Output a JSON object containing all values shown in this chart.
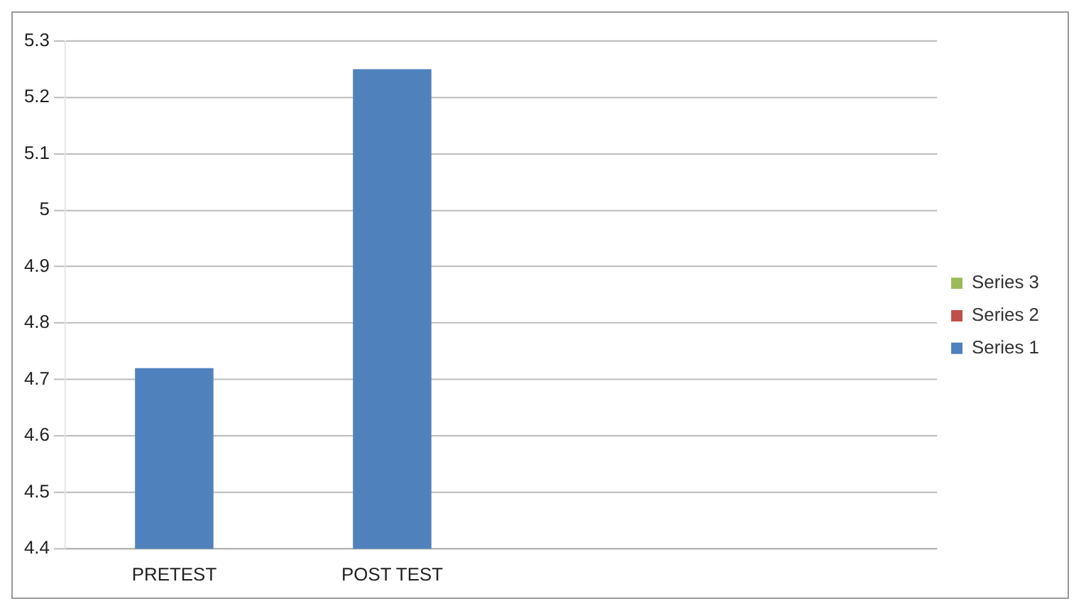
{
  "chart_data": {
    "type": "bar",
    "categories": [
      "PRETEST",
      "POST TEST",
      null,
      null
    ],
    "series": [
      {
        "name": "Series 1",
        "color": "#4f81bd",
        "values": [
          4.72,
          5.25,
          null,
          null
        ]
      },
      {
        "name": "Series 2",
        "color": "#c0504d",
        "values": [
          null,
          null,
          null,
          null
        ]
      },
      {
        "name": "Series 3",
        "color": "#9bbb59",
        "values": [
          null,
          null,
          null,
          null
        ]
      }
    ],
    "ylim": [
      4.4,
      5.3
    ],
    "yticks": [
      4.4,
      4.5,
      4.6,
      4.7,
      4.8,
      4.9,
      5,
      5.1,
      5.2,
      5.3
    ],
    "grid": "y",
    "legend": "right"
  }
}
